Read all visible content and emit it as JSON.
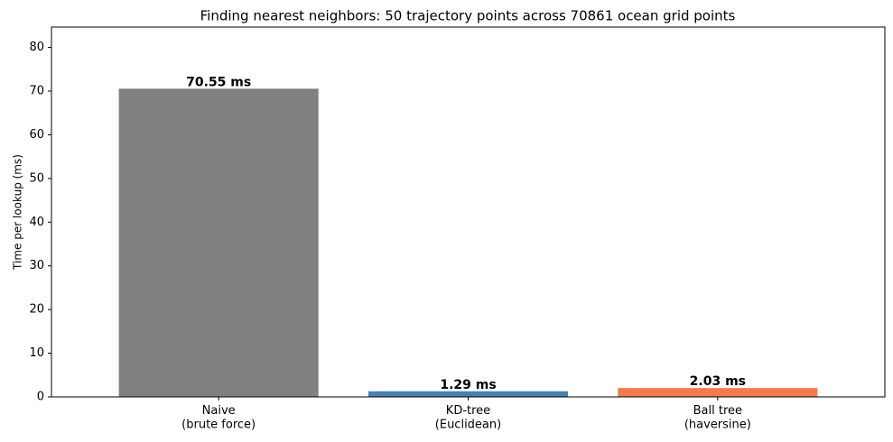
{
  "chart_data": {
    "type": "bar",
    "title": "Finding nearest neighbors: 50 trajectory points across 70861 ocean grid points",
    "y_label": "Time per lookup (ms)",
    "categories": [
      "Naive\n(brute force)",
      "KD-tree\n(Euclidean)",
      "Ball tree\n(haversine)"
    ],
    "values": [
      70.55,
      1.29,
      2.03
    ],
    "value_labels": [
      "70.55 ms",
      "1.29 ms",
      "2.03 ms"
    ],
    "colors": [
      "#808080",
      "#4682b4",
      "#f47b4e"
    ],
    "ylim": [
      0,
      84.66
    ],
    "yticks": [
      0,
      10,
      20,
      30,
      40,
      50,
      60,
      70,
      80
    ],
    "grid": false
  }
}
